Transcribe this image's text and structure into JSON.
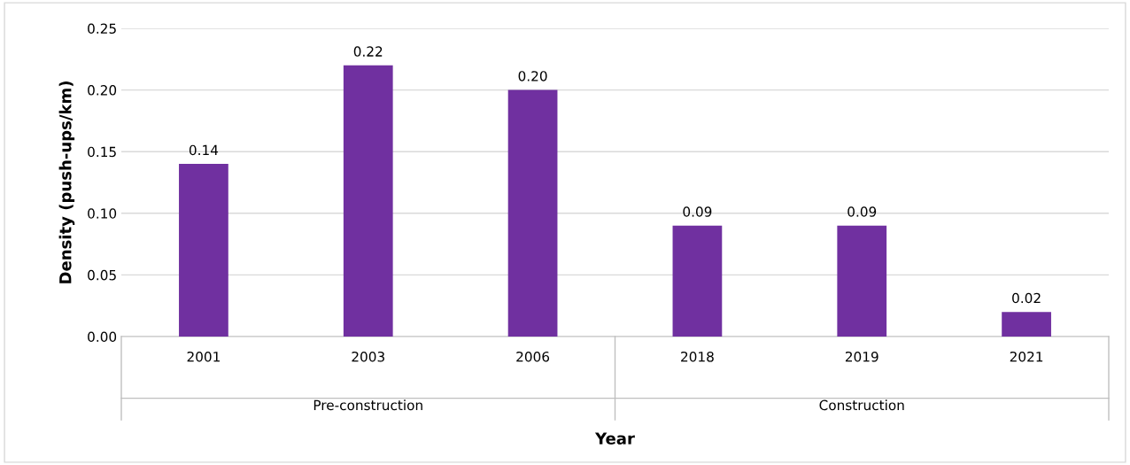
{
  "chart_data": {
    "type": "bar",
    "xlabel": "Year",
    "ylabel": "Density (push-ups/km)",
    "categories": [
      "2001",
      "2003",
      "2006",
      "2018",
      "2019",
      "2021"
    ],
    "values": [
      0.14,
      0.22,
      0.2,
      0.09,
      0.09,
      0.02
    ],
    "value_labels": [
      "0.14",
      "0.22",
      "0.20",
      "0.09",
      "0.09",
      "0.02"
    ],
    "color": "#7030a0",
    "ylim": [
      0,
      0.25
    ],
    "yticks": [
      {
        "value": 0,
        "label": "0.00"
      },
      {
        "value": 0.05,
        "label": "0.05"
      },
      {
        "value": 0.1,
        "label": "0.10"
      },
      {
        "value": 0.15,
        "label": "0.15"
      },
      {
        "value": 0.2,
        "label": "0.20"
      },
      {
        "value": 0.25,
        "label": "0.25"
      }
    ],
    "grid": "y",
    "annotations": [
      "Pre-construction",
      "Construction"
    ]
  }
}
